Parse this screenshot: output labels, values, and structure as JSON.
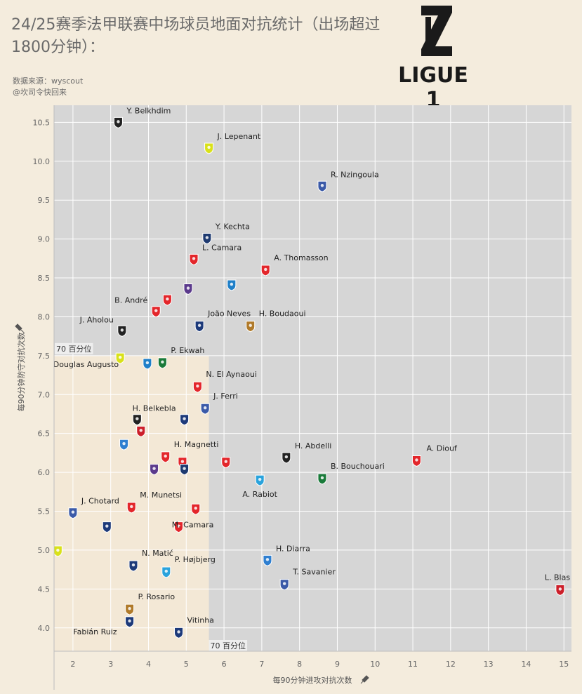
{
  "title": "24/25赛季法甲联赛中场球员地面对抗统计（出场超过1800分钟）：",
  "source_line1": "数据来源：wyscout",
  "source_line2": "@坎司令快回来",
  "logo_text": "LIGUE 1",
  "colors": {
    "background": "#f4ecdd",
    "plot_bg": "#d6d6d6",
    "quadrant": "#f3e8d6",
    "grid": "#ffffff"
  },
  "chart_data": {
    "type": "scatter",
    "title": "24/25赛季法甲联赛中场球员地面对抗统计（出场超过1800分钟）：",
    "xlabel": "每90分钟进攻对抗次数",
    "ylabel": "每90分钟防守对抗次数",
    "xlim": [
      1.5,
      15.2
    ],
    "ylim": [
      3.7,
      10.72
    ],
    "xticks": [
      2,
      3,
      4,
      5,
      6,
      7,
      8,
      9,
      10,
      11,
      12,
      13,
      14,
      15
    ],
    "yticks": [
      4.0,
      4.5,
      5.0,
      5.5,
      6.0,
      6.5,
      7.0,
      7.5,
      8.0,
      8.5,
      9.0,
      9.5,
      10.0,
      10.5
    ],
    "reference_lines": [
      {
        "axis": "x",
        "value": 5.6,
        "label": "70 百分位"
      },
      {
        "axis": "y",
        "value": 7.5,
        "label": "70 百分位"
      }
    ],
    "points": [
      {
        "name": "Y. Belkhdim",
        "x": 3.2,
        "y": 10.5,
        "team": "Angers",
        "color": "#222222",
        "label": "top"
      },
      {
        "name": "J. Lepenant",
        "x": 5.6,
        "y": 10.17,
        "team": "Nantes",
        "color": "#d9e11a",
        "label": "top"
      },
      {
        "name": "R. Nzingoula",
        "x": 8.6,
        "y": 9.68,
        "team": "Montpellier",
        "color": "#3b5aa8",
        "label": "top"
      },
      {
        "name": "Y. Kechta",
        "x": 5.55,
        "y": 9.01,
        "team": "Le Havre",
        "color": "#1e3a70",
        "label": "top"
      },
      {
        "name": "L. Camara",
        "x": 5.2,
        "y": 8.74,
        "team": "Monaco",
        "color": "#e3262b",
        "label": "top"
      },
      {
        "name": "A. Thomasson",
        "x": 7.1,
        "y": 8.6,
        "team": "Lens",
        "color": "#e3262b",
        "label": "right"
      },
      {
        "name": "",
        "x": 5.05,
        "y": 8.36,
        "team": "Toulouse",
        "color": "#5b3a8c",
        "label": "none"
      },
      {
        "name": "",
        "x": 6.2,
        "y": 8.41,
        "team": "Auxerre",
        "color": "#1f7fc8",
        "label": "none"
      },
      {
        "name": "",
        "x": 4.5,
        "y": 8.22,
        "team": "Reims",
        "color": "#e3262b",
        "label": "none"
      },
      {
        "name": "B. André",
        "x": 4.2,
        "y": 8.07,
        "team": "Lille",
        "color": "#e3262b",
        "label": "left"
      },
      {
        "name": "João Neves",
        "x": 5.35,
        "y": 7.88,
        "team": "PSG",
        "color": "#1d3a7a",
        "label": "right"
      },
      {
        "name": "H. Boudaoui",
        "x": 6.7,
        "y": 7.88,
        "team": "Nice",
        "color": "#b07a2a",
        "label": "right"
      },
      {
        "name": "J. Aholou",
        "x": 3.3,
        "y": 7.82,
        "team": "Angers",
        "color": "#222222",
        "label": "left"
      },
      {
        "name": "Douglas Augusto",
        "x": 3.25,
        "y": 7.47,
        "team": "Nantes",
        "color": "#d9e11a",
        "label": "left"
      },
      {
        "name": "",
        "x": 3.97,
        "y": 7.4,
        "team": "Auxerre",
        "color": "#1f7fc8",
        "label": "none"
      },
      {
        "name": "P. Ekwah",
        "x": 4.37,
        "y": 7.41,
        "team": "Saint-Étienne",
        "color": "#1a7a3a",
        "label": "right"
      },
      {
        "name": "N. El Aynaoui",
        "x": 5.3,
        "y": 7.1,
        "team": "Lens",
        "color": "#e3262b",
        "label": "right"
      },
      {
        "name": "J. Ferri",
        "x": 5.5,
        "y": 6.82,
        "team": "Montpellier",
        "color": "#3b5aa8",
        "label": "right"
      },
      {
        "name": "",
        "x": 3.7,
        "y": 6.68,
        "team": "Angers",
        "color": "#222222",
        "label": "none"
      },
      {
        "name": "H. Belkebla",
        "x": 4.95,
        "y": 6.68,
        "team": "Lyon",
        "color": "#1d3a7a",
        "label": "left"
      },
      {
        "name": "",
        "x": 3.8,
        "y": 6.53,
        "team": "Rennes",
        "color": "#cc1f2a",
        "label": "none"
      },
      {
        "name": "",
        "x": 3.35,
        "y": 6.36,
        "team": "Strasbourg",
        "color": "#2f7fd0",
        "label": "none"
      },
      {
        "name": "H. Magnetti",
        "x": 4.45,
        "y": 6.2,
        "team": "Brest",
        "color": "#e3262b",
        "label": "right"
      },
      {
        "name": "",
        "x": 4.9,
        "y": 6.13,
        "team": "Monaco",
        "color": "#e3262b",
        "label": "none"
      },
      {
        "name": "",
        "x": 6.05,
        "y": 6.13,
        "team": "Reims",
        "color": "#e3262b",
        "label": "none"
      },
      {
        "name": "",
        "x": 4.15,
        "y": 6.04,
        "team": "Toulouse",
        "color": "#5b3a8c",
        "label": "none"
      },
      {
        "name": "",
        "x": 4.95,
        "y": 6.04,
        "team": "Le Havre",
        "color": "#1e3a70",
        "label": "none"
      },
      {
        "name": "H. Abdelli",
        "x": 7.65,
        "y": 6.19,
        "team": "Angers",
        "color": "#222222",
        "label": "top"
      },
      {
        "name": "A. Diouf",
        "x": 11.1,
        "y": 6.15,
        "team": "Lens",
        "color": "#e3262b",
        "label": "top"
      },
      {
        "name": "B. Bouchouari",
        "x": 8.6,
        "y": 5.92,
        "team": "Saint-Étienne",
        "color": "#1a7a3a",
        "label": "right"
      },
      {
        "name": "A. Rabiot",
        "x": 6.95,
        "y": 5.9,
        "team": "Marseille",
        "color": "#2aa3dc",
        "label": "bottom"
      },
      {
        "name": "J. Chotard",
        "x": 2.0,
        "y": 5.48,
        "team": "Montpellier",
        "color": "#3b5aa8",
        "label": "top"
      },
      {
        "name": "M. Munetsi",
        "x": 3.55,
        "y": 5.55,
        "team": "Reims",
        "color": "#e3262b",
        "label": "right"
      },
      {
        "name": "",
        "x": 5.25,
        "y": 5.53,
        "team": "Brest",
        "color": "#e3262b",
        "label": "none"
      },
      {
        "name": "",
        "x": 2.9,
        "y": 5.3,
        "team": "Lyon",
        "color": "#1d3a7a",
        "label": "none"
      },
      {
        "name": "M. Camara",
        "x": 4.8,
        "y": 5.3,
        "team": "Brest",
        "color": "#e3262b",
        "label": "none_text"
      },
      {
        "name": "",
        "x": 1.6,
        "y": 4.99,
        "team": "Nantes",
        "color": "#d9e11a",
        "label": "none"
      },
      {
        "name": "H. Diarra",
        "x": 7.15,
        "y": 4.87,
        "team": "Strasbourg",
        "color": "#2f7fd0",
        "label": "top"
      },
      {
        "name": "N. Matić",
        "x": 3.6,
        "y": 4.8,
        "team": "Lyon",
        "color": "#1d3a7a",
        "label": "right"
      },
      {
        "name": "P. Højbjerg",
        "x": 4.47,
        "y": 4.72,
        "team": "Marseille",
        "color": "#2aa3dc",
        "label": "right"
      },
      {
        "name": "T. Savanier",
        "x": 7.6,
        "y": 4.56,
        "team": "Montpellier",
        "color": "#3b5aa8",
        "label": "right"
      },
      {
        "name": "L. Blas",
        "x": 14.9,
        "y": 4.49,
        "team": "Rennes",
        "color": "#cc1f2a",
        "label": "top"
      },
      {
        "name": "P. Rosario",
        "x": 3.5,
        "y": 4.24,
        "team": "Nice",
        "color": "#b07a2a",
        "label": "right"
      },
      {
        "name": "Fabián Ruiz",
        "x": 3.5,
        "y": 4.08,
        "team": "PSG",
        "color": "#1d3a7a",
        "label": "left"
      },
      {
        "name": "Vitinha",
        "x": 4.8,
        "y": 3.94,
        "team": "PSG",
        "color": "#1d3a7a",
        "label": "right"
      }
    ]
  }
}
